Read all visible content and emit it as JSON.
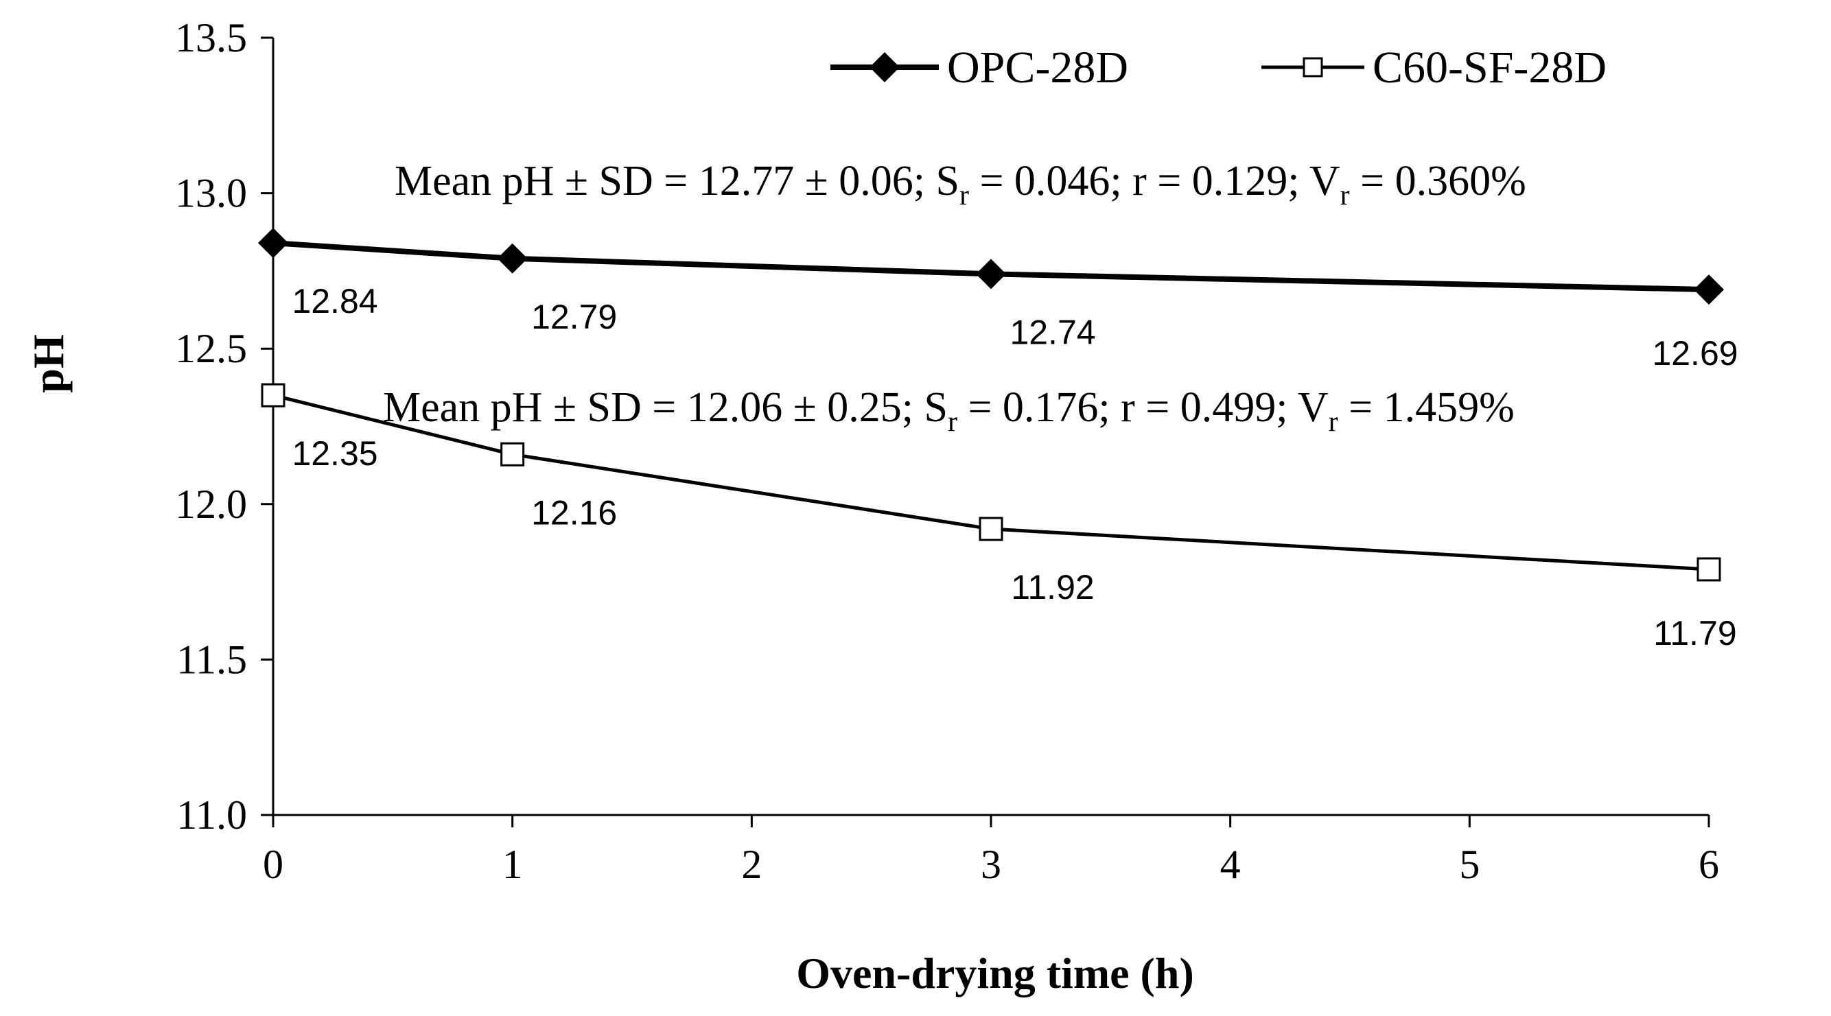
{
  "chart_data": {
    "type": "line",
    "title": "",
    "xlabel": "Oven-drying time (h)",
    "ylabel": "pH",
    "xlim": [
      0,
      6
    ],
    "ylim": [
      11.0,
      13.5
    ],
    "x_ticks": [
      "0",
      "1",
      "2",
      "3",
      "4",
      "5",
      "6"
    ],
    "y_ticks": [
      "11.0",
      "11.5",
      "12.0",
      "12.5",
      "13.0",
      "13.5"
    ],
    "grid": false,
    "legend_position": "top-right",
    "series": [
      {
        "name": "OPC-28D",
        "marker": "filled-diamond",
        "x": [
          0,
          1,
          3,
          6
        ],
        "values": [
          12.84,
          12.79,
          12.74,
          12.69
        ],
        "labels": [
          "12.84",
          "12.79",
          "12.74",
          "12.69"
        ],
        "stats": {
          "prefix": "Mean pH ± SD = 12.77 ± 0.06; S",
          "sr_sub": "r",
          "sr_val": " = 0.046; r = 0.129; V",
          "vr_sub": "r",
          "vr_val": " = 0.360%"
        }
      },
      {
        "name": "C60-SF-28D",
        "marker": "open-square",
        "x": [
          0,
          1,
          3,
          6
        ],
        "values": [
          12.35,
          12.16,
          11.92,
          11.79
        ],
        "labels": [
          "12.35",
          "12.16",
          "11.92",
          "11.79"
        ],
        "stats": {
          "prefix": "Mean pH ± SD = 12.06 ± 0.25; S",
          "sr_sub": "r",
          "sr_val": " = 0.176; r = 0.499; V",
          "vr_sub": "r",
          "vr_val": " = 1.459%"
        }
      }
    ]
  }
}
